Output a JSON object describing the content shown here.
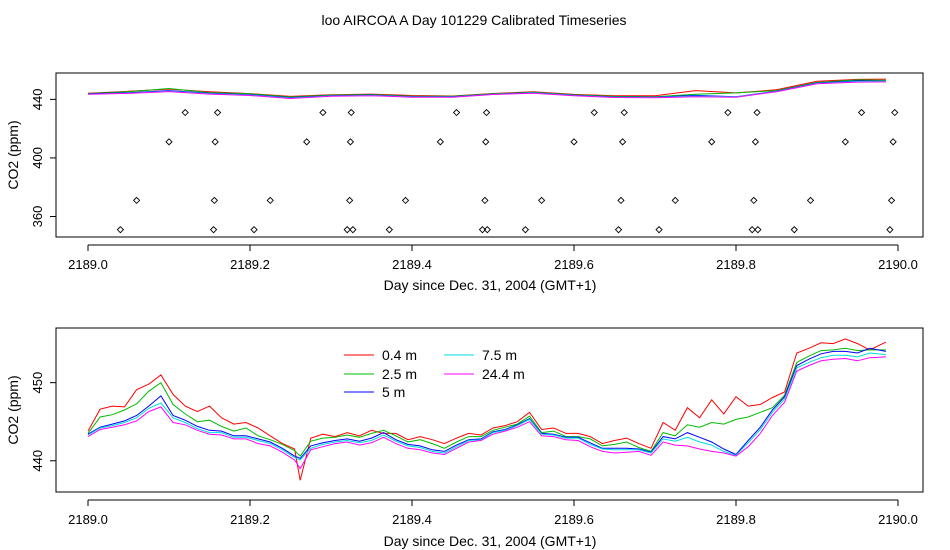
{
  "title": "loo AIRCOA A  Day 101229  Calibrated Timeseries",
  "chart_data": [
    {
      "type": "line",
      "xlabel": "Day since Dec. 31, 2004 (GMT+1)",
      "ylabel": "CO2 (ppm)",
      "xlim": [
        2189.0,
        2190.0
      ],
      "ylim": [
        346,
        458
      ],
      "xticks": [
        2189.0,
        2189.2,
        2189.4,
        2189.6,
        2189.8,
        2190.0
      ],
      "yticks": [
        360,
        400,
        440
      ],
      "x": [
        2189.0,
        2189.05,
        2189.1,
        2189.15,
        2189.2,
        2189.25,
        2189.3,
        2189.35,
        2189.4,
        2189.45,
        2189.5,
        2189.55,
        2189.6,
        2189.65,
        2189.7,
        2189.75,
        2189.8,
        2189.85,
        2189.9,
        2189.95,
        2189.985
      ],
      "series": [
        {
          "name": "0.4 m",
          "color": "#ff0000",
          "values": [
            444.2,
            445.5,
            447.0,
            445.2,
            443.9,
            442.0,
            443.2,
            443.6,
            442.6,
            442.3,
            444.0,
            445.2,
            443.4,
            442.4,
            442.4,
            446.0,
            444.4,
            446.5,
            452.3,
            453.6,
            453.8
          ]
        },
        {
          "name": "2.5 m",
          "color": "#00bb00",
          "values": [
            444.0,
            445.2,
            447.4,
            444.6,
            443.8,
            441.6,
            442.9,
            443.3,
            442.1,
            442.1,
            443.8,
            444.9,
            443.2,
            442.0,
            441.8,
            443.5,
            444.4,
            446.0,
            451.6,
            453.3,
            453.1
          ]
        },
        {
          "name": "5 m",
          "color": "#0000ff",
          "values": [
            443.8,
            444.5,
            446.0,
            444.2,
            443.2,
            441.2,
            442.5,
            442.9,
            441.9,
            441.8,
            443.5,
            444.5,
            442.8,
            441.6,
            441.4,
            442.7,
            441.8,
            445.6,
            451.2,
            452.6,
            452.5
          ]
        },
        {
          "name": "7.5 m",
          "color": "#00dddd",
          "values": [
            443.6,
            444.3,
            445.6,
            443.9,
            442.9,
            440.9,
            442.3,
            442.7,
            441.7,
            441.6,
            443.4,
            444.4,
            442.6,
            441.5,
            441.3,
            442.2,
            441.7,
            445.4,
            450.9,
            452.2,
            452.3
          ]
        },
        {
          "name": "24.4 m",
          "color": "#ff00ff",
          "values": [
            443.5,
            444.1,
            445.3,
            443.6,
            442.6,
            440.6,
            442.1,
            442.5,
            441.5,
            441.5,
            443.3,
            444.2,
            442.5,
            441.3,
            441.1,
            441.8,
            441.5,
            445.2,
            450.6,
            451.8,
            451.9
          ]
        }
      ],
      "points": {
        "label": "",
        "x": [
          2189.04,
          2189.06,
          2189.1,
          2189.12,
          2189.155,
          2189.156,
          2189.157,
          2189.16,
          2189.205,
          2189.225,
          2189.27,
          2189.29,
          2189.32,
          2189.323,
          2189.324,
          2189.325,
          2189.327,
          2189.372,
          2189.392,
          2189.435,
          2189.455,
          2189.487,
          2189.49,
          2189.491,
          2189.492,
          2189.493,
          2189.54,
          2189.56,
          2189.6,
          2189.625,
          2189.655,
          2189.658,
          2189.66,
          2189.662,
          2189.705,
          2189.725,
          2189.77,
          2189.79,
          2189.82,
          2189.822,
          2189.824,
          2189.826,
          2189.827,
          2189.872,
          2189.892,
          2189.935,
          2189.955,
          2189.99,
          2189.992,
          2189.994,
          2189.996
        ],
        "y": [
          351,
          371,
          411,
          431,
          351,
          371,
          411,
          431,
          351,
          371,
          411,
          431,
          351,
          371,
          411,
          431,
          351,
          351,
          371,
          411,
          431,
          351,
          371,
          411,
          431,
          351,
          351,
          371,
          411,
          431,
          351,
          371,
          411,
          431,
          351,
          371,
          411,
          431,
          351,
          371,
          411,
          431,
          351,
          351,
          371,
          411,
          431,
          351,
          371,
          411,
          431
        ]
      }
    },
    {
      "type": "line",
      "xlabel": "Day since Dec. 31, 2004 (GMT+1)",
      "ylabel": "CO2 (ppm)",
      "xlim": [
        2189.0,
        2190.0
      ],
      "ylim": [
        436,
        457
      ],
      "xticks": [
        2189.0,
        2189.2,
        2189.4,
        2189.6,
        2189.8,
        2190.0
      ],
      "yticks": [
        440,
        450
      ],
      "legend_position": "top-center",
      "x": [
        2189.0,
        2189.015,
        2189.03,
        2189.045,
        2189.06,
        2189.075,
        2189.09,
        2189.105,
        2189.12,
        2189.135,
        2189.15,
        2189.165,
        2189.18,
        2189.195,
        2189.21,
        2189.225,
        2189.24,
        2189.255,
        2189.262,
        2189.275,
        2189.29,
        2189.305,
        2189.32,
        2189.335,
        2189.35,
        2189.365,
        2189.38,
        2189.395,
        2189.41,
        2189.425,
        2189.44,
        2189.455,
        2189.47,
        2189.485,
        2189.5,
        2189.515,
        2189.53,
        2189.545,
        2189.56,
        2189.575,
        2189.59,
        2189.605,
        2189.62,
        2189.635,
        2189.65,
        2189.665,
        2189.68,
        2189.695,
        2189.71,
        2189.725,
        2189.74,
        2189.755,
        2189.77,
        2189.785,
        2189.8,
        2189.815,
        2189.83,
        2189.845,
        2189.86,
        2189.875,
        2189.89,
        2189.905,
        2189.92,
        2189.935,
        2189.95,
        2189.965,
        2189.985
      ],
      "series": [
        {
          "name": "0.4 m",
          "color": "#ff0000",
          "values": [
            443.8,
            446.6,
            447.0,
            446.9,
            449.1,
            449.8,
            451.0,
            448.5,
            447.0,
            446.3,
            447.0,
            445.5,
            444.7,
            444.9,
            444.2,
            443.2,
            442.2,
            441.5,
            437.5,
            442.9,
            443.4,
            443.1,
            443.6,
            443.2,
            443.9,
            443.5,
            443.5,
            442.7,
            443.1,
            442.7,
            442.2,
            442.9,
            443.5,
            443.3,
            444.2,
            444.5,
            445.0,
            446.2,
            444.0,
            444.2,
            443.5,
            443.5,
            443.1,
            442.2,
            442.6,
            442.9,
            442.2,
            441.6,
            444.9,
            443.9,
            446.8,
            445.5,
            447.8,
            446.0,
            448.2,
            447.0,
            447.2,
            448.1,
            448.8,
            453.8,
            454.4,
            455.1,
            455.0,
            455.6,
            455.0,
            454.2,
            455.2
          ]
        },
        {
          "name": "2.5 m",
          "color": "#00bb00",
          "values": [
            443.5,
            445.6,
            445.9,
            446.5,
            447.3,
            448.9,
            450.0,
            447.2,
            446.0,
            445.0,
            445.2,
            444.4,
            443.8,
            444.2,
            443.2,
            442.7,
            442.1,
            441.3,
            440.6,
            442.5,
            442.9,
            443.0,
            443.3,
            443.0,
            443.5,
            443.9,
            443.2,
            442.4,
            442.7,
            442.2,
            441.6,
            442.4,
            443.1,
            443.1,
            443.9,
            444.3,
            444.7,
            445.7,
            443.6,
            443.8,
            443.1,
            443.1,
            442.8,
            441.9,
            442.1,
            442.4,
            441.7,
            441.2,
            443.6,
            443.2,
            444.6,
            444.3,
            444.9,
            444.7,
            445.3,
            445.6,
            446.2,
            446.8,
            448.4,
            452.6,
            453.4,
            454.1,
            454.2,
            454.4,
            454.1,
            454.2,
            454.2
          ]
        },
        {
          "name": "5 m",
          "color": "#0000ff",
          "values": [
            443.4,
            444.3,
            444.7,
            445.1,
            445.8,
            447.0,
            448.3,
            445.8,
            445.2,
            444.4,
            443.9,
            443.8,
            443.2,
            443.2,
            442.8,
            442.4,
            441.6,
            440.6,
            440.3,
            441.9,
            442.3,
            442.6,
            442.8,
            442.5,
            442.9,
            443.6,
            442.7,
            442.1,
            441.9,
            441.4,
            441.2,
            442.0,
            442.7,
            442.8,
            443.7,
            444.0,
            444.6,
            445.4,
            443.5,
            443.4,
            443.0,
            443.0,
            442.3,
            441.6,
            441.6,
            441.6,
            441.5,
            441.1,
            443.1,
            442.8,
            443.6,
            443.0,
            442.4,
            441.5,
            440.8,
            442.6,
            444.3,
            446.5,
            448.2,
            452.2,
            453.0,
            453.7,
            454.0,
            454.0,
            453.8,
            454.4,
            454.0
          ]
        },
        {
          "name": "7.5 m",
          "color": "#00dddd",
          "values": [
            443.3,
            444.2,
            444.5,
            444.9,
            445.5,
            446.7,
            447.4,
            445.5,
            444.9,
            444.1,
            443.6,
            443.6,
            443.0,
            443.0,
            442.6,
            442.2,
            441.4,
            440.4,
            440.1,
            441.6,
            442.1,
            442.4,
            442.6,
            442.3,
            442.6,
            443.3,
            442.5,
            441.9,
            441.7,
            441.2,
            441.0,
            441.8,
            442.6,
            442.7,
            443.6,
            443.9,
            444.5,
            445.3,
            443.4,
            443.3,
            442.9,
            442.9,
            442.1,
            441.5,
            441.4,
            441.4,
            441.4,
            441.0,
            442.8,
            442.5,
            443.0,
            442.4,
            442.0,
            441.2,
            440.7,
            442.3,
            444.0,
            446.2,
            447.9,
            451.9,
            452.6,
            453.2,
            453.5,
            453.5,
            453.3,
            453.8,
            453.6
          ]
        },
        {
          "name": "24.4 m",
          "color": "#ff00ff",
          "values": [
            443.1,
            444.0,
            444.3,
            444.6,
            445.1,
            446.3,
            446.9,
            444.9,
            444.6,
            443.9,
            443.4,
            443.3,
            442.8,
            442.8,
            442.2,
            441.9,
            441.1,
            440.1,
            439.0,
            441.4,
            441.8,
            442.2,
            442.4,
            442.0,
            442.3,
            443.0,
            442.2,
            441.6,
            441.4,
            441.0,
            440.8,
            441.6,
            442.4,
            442.6,
            443.4,
            443.8,
            444.3,
            445.0,
            443.2,
            443.1,
            442.7,
            442.6,
            441.8,
            441.2,
            441.0,
            441.1,
            441.2,
            440.7,
            442.4,
            442.0,
            441.9,
            441.5,
            441.2,
            441.0,
            440.6,
            441.8,
            443.5,
            445.8,
            447.5,
            451.5,
            452.2,
            452.8,
            453.0,
            453.1,
            452.8,
            453.2,
            453.3
          ]
        }
      ]
    }
  ]
}
